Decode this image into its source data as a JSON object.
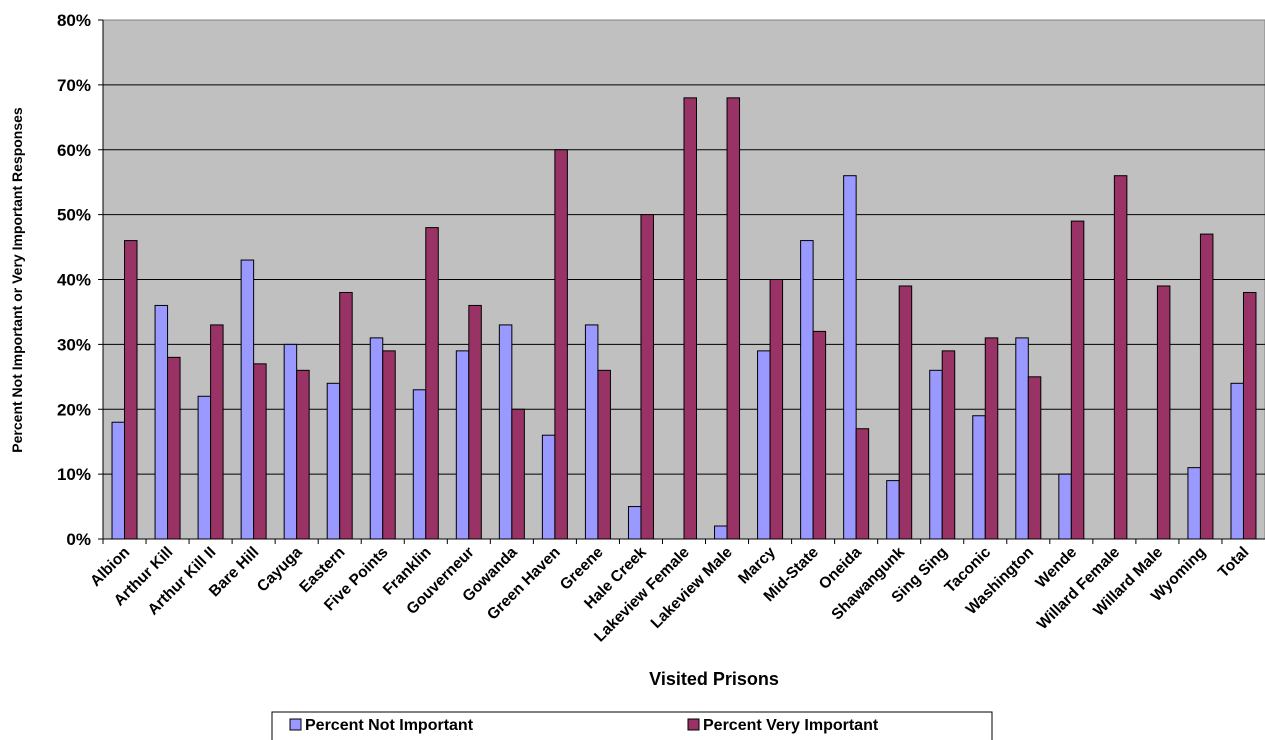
{
  "chart_data": {
    "type": "bar",
    "xlabel": "Visited Prisons",
    "ylabel": "Percent Not Important or Very Important Responses",
    "ylim": [
      0,
      80
    ],
    "yticks": [
      "0%",
      "10%",
      "20%",
      "30%",
      "40%",
      "50%",
      "60%",
      "70%",
      "80%"
    ],
    "grid": true,
    "legend_position": "bottom",
    "categories": [
      "Albion",
      "Arthur Kill",
      "Arthur Kill II",
      "Bare Hill",
      "Cayuga",
      "Eastern",
      "Five Points",
      "Franklin",
      "Gouverneur",
      "Gowanda",
      "Green Haven",
      "Greene",
      "Hale Creek",
      "Lakeview Female",
      "Lakeview Male",
      "Marcy",
      "Mid-State",
      "Oneida",
      "Shawangunk",
      "Sing Sing",
      "Taconic",
      "Washington",
      "Wende",
      "Willard Female",
      "Willard Male",
      "Wyoming",
      "Total"
    ],
    "series": [
      {
        "name": "Percent Not Important",
        "color": "#9999ff",
        "values": [
          18,
          36,
          22,
          43,
          30,
          24,
          31,
          23,
          29,
          33,
          16,
          33,
          5,
          0,
          2,
          29,
          46,
          56,
          9,
          26,
          19,
          31,
          10,
          0,
          0,
          11,
          24
        ]
      },
      {
        "name": "Percent  Very Important",
        "color": "#993366",
        "values": [
          46,
          28,
          33,
          27,
          26,
          38,
          29,
          48,
          36,
          20,
          60,
          26,
          50,
          68,
          68,
          40,
          32,
          17,
          39,
          29,
          31,
          25,
          49,
          56,
          39,
          47,
          38
        ]
      }
    ],
    "plot_background": "#c0c0c0"
  }
}
